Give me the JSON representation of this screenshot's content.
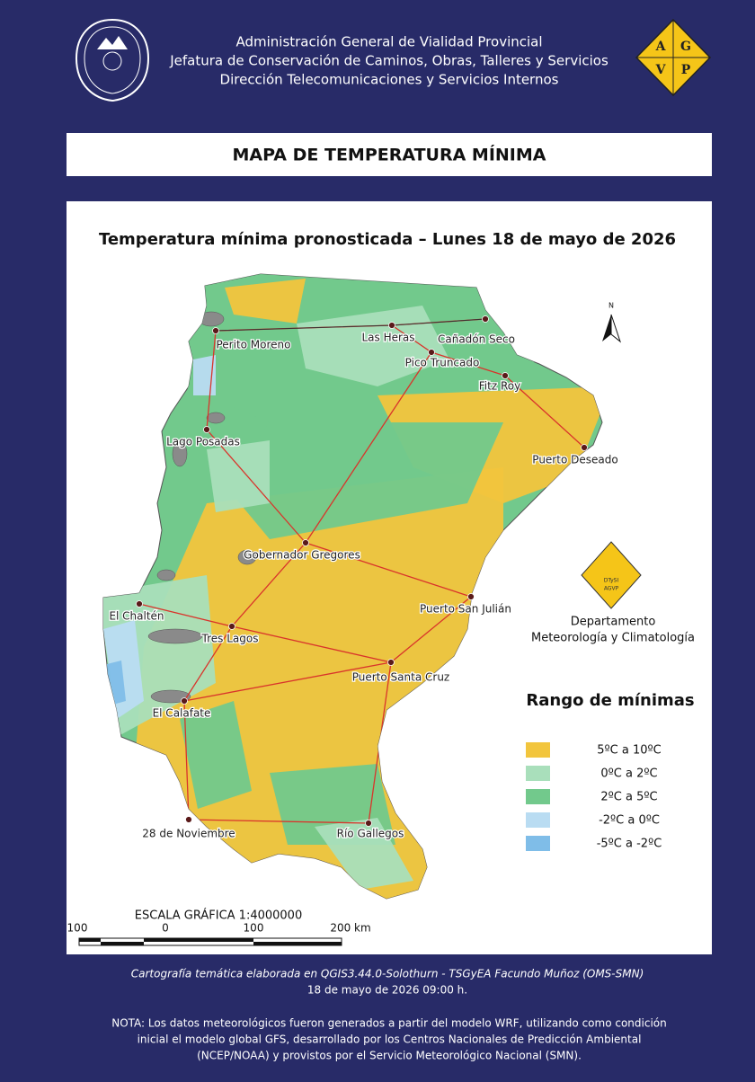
{
  "header": {
    "lines": [
      "Administración General de Vialidad Provincial",
      "Jefatura de Conservación de Caminos, Obras, Talleres y Servicios",
      "Dirección Telecomunicaciones y Servicios Internos"
    ],
    "logo_letters": [
      "A",
      "G",
      "V",
      "P"
    ]
  },
  "title": "MAPA DE TEMPERATURA MÍNIMA",
  "map": {
    "title": "Temperatura mínima pronosticada – Lunes 18 de mayo de 2026",
    "north": "N",
    "places": [
      "Perito Moreno",
      "Las Heras",
      "Cañadón Seco",
      "Pico Truncado",
      "Fitz Roy",
      "Lago Posadas",
      "Puerto Deseado",
      "Gobernador Gregores",
      "Puerto San Julián",
      "El Chaltén",
      "Tres Lagos",
      "Puerto Santa Cruz",
      "El Calafate",
      "28 de Noviembre",
      "Río Gallegos"
    ],
    "department": {
      "logo": [
        "DTySI",
        "AGVP"
      ],
      "lines": [
        "Departamento",
        "Meteorología y Climatología"
      ]
    },
    "legend": {
      "title": "Rango  de mínimas",
      "items": [
        {
          "label": "5ºC a 10ºC",
          "color": "#f2c53d"
        },
        {
          "label": "0ºC a 2ºC",
          "color": "#a9dfbb"
        },
        {
          "label": "2ºC a 5ºC",
          "color": "#72c98c"
        },
        {
          "label": "-2ºC a 0ºC",
          "color": "#b9dcf2"
        },
        {
          "label": "-5ºC a -2ºC",
          "color": "#7fbde8"
        }
      ]
    },
    "scale": {
      "title": "ESCALA GRÁFICA 1:4000000",
      "labels": [
        "100",
        "0",
        "100",
        "200 km"
      ]
    }
  },
  "footer": {
    "credits": [
      "Cartografía temática elaborada en QGIS3.44.0-Solothurn - TSGyEA Facundo Muñoz (OMS-SMN)",
      "18 de mayo de 2026 09:00 h."
    ],
    "note": [
      "NOTA: Los datos meteorológicos fueron generados a partir del modelo WRF, utilizando como condición",
      "inicial el modelo global GFS, desarrollado por los Centros Nacionales de Predicción Ambiental",
      "(NCEP/NOAA) y provistos por el Servicio Meteorológico Nacional (SMN)."
    ]
  }
}
